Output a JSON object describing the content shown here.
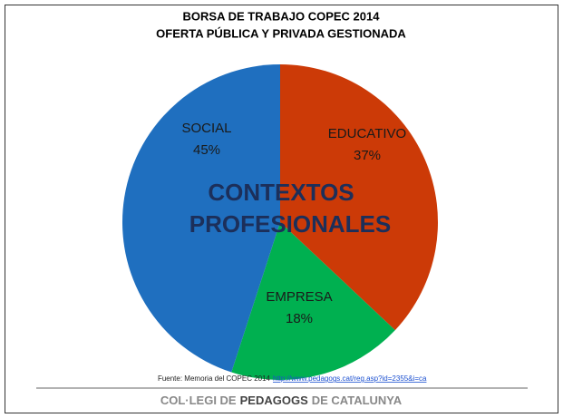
{
  "chart_data": {
    "type": "pie",
    "title": "BORSA DE TRABAJO COPEC 2014",
    "subtitle": "OFERTA PÚBLICA Y PRIVADA GESTIONADA",
    "categories": [
      "EDUCATIVO",
      "EMPRESA",
      "SOCIAL"
    ],
    "values": [
      37,
      18,
      45
    ],
    "value_labels": [
      "37%",
      "18%",
      "45%"
    ],
    "colors": [
      "#cc3a07",
      "#00b050",
      "#1f6fbf"
    ],
    "annotation": [
      "CONTEXTOS",
      "PROFESIONALES"
    ]
  },
  "source": {
    "text": "Fuente: Memoria del COPEC 2014",
    "link": "http://www.pedagogs.cat/reg.asp?id=2355&i=ca"
  },
  "footer": [
    "COL·LEGI DE",
    "PEDAGOGS",
    "DE CATALUNYA"
  ]
}
